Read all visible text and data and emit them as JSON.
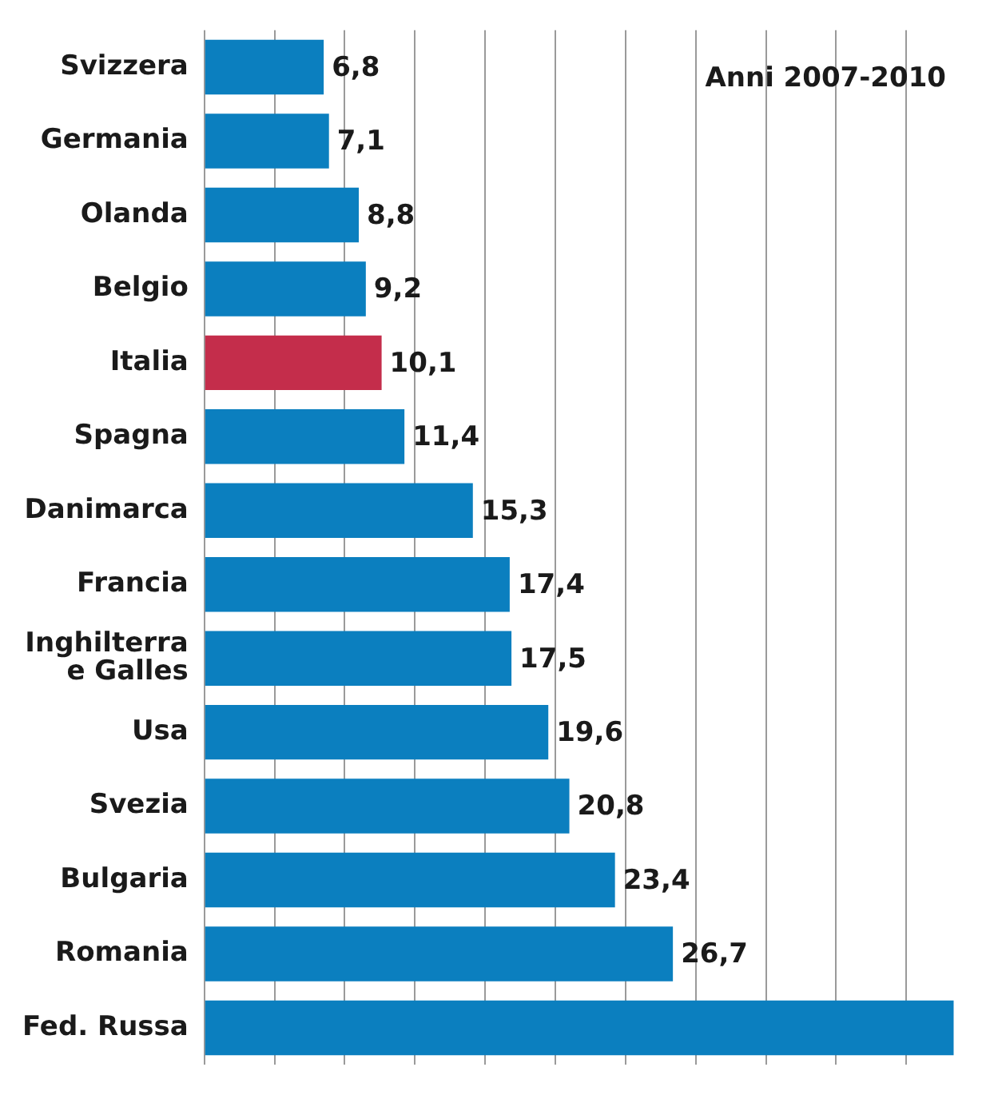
{
  "chart_data": {
    "type": "bar",
    "orientation": "horizontal",
    "annotations": [
      "Anni 2007-2010"
    ],
    "categories": [
      "Svizzera",
      "Germania",
      "Olanda",
      "Belgio",
      "Italia",
      "Spagna",
      "Danimarca",
      "Francia",
      "Inghilterra e Galles",
      "Usa",
      "Svezia",
      "Bulgaria",
      "Romania",
      "Fed. Russa"
    ],
    "values": [
      6.8,
      7.1,
      8.8,
      9.2,
      10.1,
      11.4,
      15.3,
      17.4,
      17.5,
      19.6,
      20.8,
      23.4,
      26.7,
      42.7
    ],
    "value_labels": [
      "6,8",
      "7,1",
      "8,8",
      "9,2",
      "10,1",
      "11,4",
      "15,3",
      "17,4",
      "17,5",
      "19,6",
      "20,8",
      "23,4",
      "26,7",
      null
    ],
    "colors": [
      "#0b7fbf",
      "#0b7fbf",
      "#0b7fbf",
      "#0b7fbf",
      "#c42d4b",
      "#0b7fbf",
      "#0b7fbf",
      "#0b7fbf",
      "#0b7fbf",
      "#0b7fbf",
      "#0b7fbf",
      "#0b7fbf",
      "#0b7fbf",
      "#0b7fbf"
    ],
    "xticks": [
      {
        "value": 0,
        "label": null
      },
      {
        "value": 4,
        "label": null
      },
      {
        "value": 8,
        "label": null
      },
      {
        "value": 12,
        "label": null
      },
      {
        "value": 16,
        "label": null
      },
      {
        "value": 20,
        "label": null
      },
      {
        "value": 24,
        "label": null
      },
      {
        "value": 28,
        "label": null
      },
      {
        "value": 32,
        "label": null
      },
      {
        "value": 36,
        "label": null
      },
      {
        "value": 40,
        "label": null
      }
    ],
    "grid": "x",
    "tick_labels": "y",
    "legend": false
  }
}
